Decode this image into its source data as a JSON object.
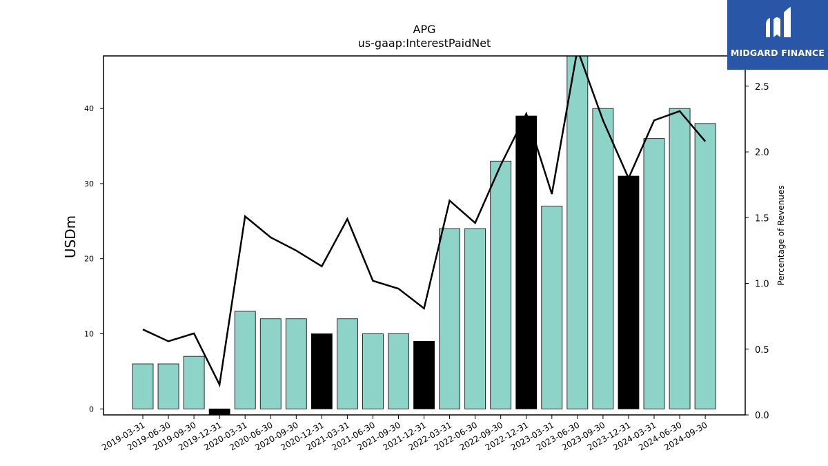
{
  "chart_data": {
    "type": "bar",
    "title": "APG",
    "subtitle": "us-gaap:InterestPaidNet",
    "ylabel": "USDm",
    "y2label": "Percentage of Revenues",
    "ylim": [
      -0.8,
      47
    ],
    "y2lim": [
      0,
      2.73
    ],
    "yticks": [
      "0",
      "10",
      "20",
      "30",
      "40"
    ],
    "y2ticks": [
      "0.0",
      "0.5",
      "1.0",
      "1.5",
      "2.0",
      "2.5"
    ],
    "categories": [
      "2019-03-31",
      "2019-06-30",
      "2019-09-30",
      "2019-12-31",
      "2020-03-31",
      "2020-06-30",
      "2020-09-30",
      "2020-12-31",
      "2021-03-31",
      "2021-06-30",
      "2021-09-30",
      "2021-12-31",
      "2022-03-31",
      "2022-06-30",
      "2022-09-30",
      "2022-12-31",
      "2023-03-31",
      "2023-06-30",
      "2023-09-30",
      "2023-12-31",
      "2024-03-31",
      "2024-06-30",
      "2024-09-30"
    ],
    "series": [
      {
        "values": [
          6,
          6,
          7,
          -0.8,
          13,
          12,
          12,
          10,
          12,
          10,
          10,
          9,
          24,
          24,
          33,
          39,
          27,
          47,
          40,
          31,
          36,
          40,
          38
        ]
      },
      {
        "type": "line",
        "axis": "right",
        "values": [
          0.65,
          0.56,
          0.62,
          0.23,
          1.51,
          1.35,
          1.25,
          1.13,
          1.49,
          1.02,
          0.96,
          0.81,
          1.63,
          1.46,
          1.9,
          2.29,
          1.68,
          2.78,
          2.24,
          1.8,
          2.24,
          2.31,
          2.08
        ]
      }
    ],
    "highlight_indices": [
      3,
      7,
      11,
      15,
      19
    ],
    "colors": {
      "bar": "#8dd3c7",
      "highlight": "#000000",
      "line": "#000000"
    }
  },
  "logo": {
    "text": "MIDGARD FINANCE"
  }
}
